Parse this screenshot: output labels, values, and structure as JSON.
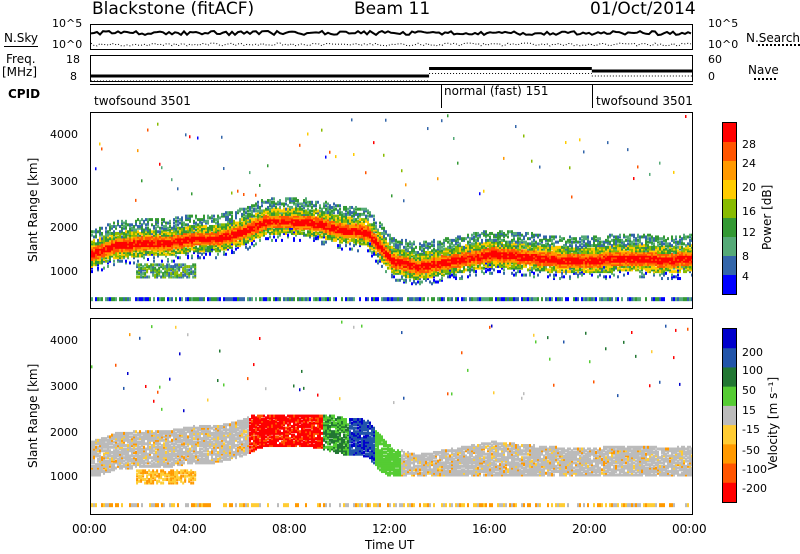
{
  "header": {
    "station": "Blackstone (fitACF)",
    "beam": "Beam 11",
    "date": "01/Oct/2014"
  },
  "noise_panel": {
    "left_label": "N.Sky",
    "right_label": "N.Search",
    "left_ticks": [
      "10^5",
      "10^0"
    ],
    "right_ticks": [
      "10^5",
      "10^0"
    ]
  },
  "freq_panel": {
    "left_label_1": "Freq.",
    "left_label_2": "[MHz]",
    "left_ticks": [
      "18",
      "8"
    ],
    "right_label": "Nave",
    "right_ticks": [
      "60",
      "0"
    ],
    "cpid_label": "CPID"
  },
  "cpid_segments": [
    {
      "label": "twofsound 3501",
      "start": "00:00",
      "end": "14:00"
    },
    {
      "label": "normal (fast) 151",
      "start": "14:00",
      "end": "20:00"
    },
    {
      "label": "twofsound 3501",
      "start": "20:00",
      "end": "24:00"
    }
  ],
  "power_panel": {
    "ylabel": "Slant Range [km]",
    "y_ticks": [
      "4000",
      "3000",
      "2000",
      "1000"
    ],
    "colorbar_label": "Power [dB]",
    "colorbar_ticks": [
      "28",
      "24",
      "20",
      "16",
      "12",
      "8",
      "4"
    ],
    "colorbar_colors": [
      "#ff0000",
      "#ff5500",
      "#ff9900",
      "#ffcc00",
      "#88bb00",
      "#339933",
      "#55aa77",
      "#3366aa",
      "#0000ff"
    ]
  },
  "velocity_panel": {
    "ylabel": "Slant Range [km]",
    "y_ticks": [
      "4000",
      "3000",
      "2000",
      "1000"
    ],
    "colorbar_label": "Velocity [m s⁻¹]",
    "colorbar_ticks": [
      "200",
      "100",
      "50",
      "15",
      "-15",
      "-50",
      "-100",
      "-200"
    ],
    "colorbar_colors": [
      "#0000cc",
      "#2255aa",
      "#227733",
      "#55cc33",
      "#bbbbbb",
      "#ffcc33",
      "#ff9900",
      "#ff5500",
      "#ff0000"
    ]
  },
  "x_axis": {
    "ticks": [
      "00:00",
      "04:00",
      "08:00",
      "12:00",
      "16:00",
      "20:00",
      "00:00"
    ],
    "label": "Time UT"
  },
  "chart_data": {
    "type": "heatmap",
    "title": "Blackstone (fitACF)",
    "xlabel": "Time UT",
    "ylabel": "Slant Range [km]",
    "xlim": [
      0,
      24
    ],
    "ylim": [
      0,
      4500
    ],
    "power_colorbar": {
      "label": "Power [dB]",
      "range": [
        0,
        30
      ]
    },
    "velocity_colorbar": {
      "label": "Velocity [m s⁻¹]",
      "range": [
        -250,
        250
      ]
    },
    "power_band_trace": {
      "x_hours": [
        0,
        1,
        2,
        3,
        4,
        5,
        6,
        7,
        8,
        9,
        10,
        11,
        12,
        13,
        14,
        15,
        16,
        17,
        18,
        19,
        20,
        21,
        22,
        23,
        24
      ],
      "range_km": [
        1250,
        1450,
        1500,
        1500,
        1600,
        1600,
        1750,
        2000,
        2000,
        1950,
        1800,
        1750,
        1100,
        950,
        1050,
        1150,
        1250,
        1200,
        1150,
        1100,
        1100,
        1150,
        1150,
        1100,
        1150
      ]
    },
    "freq_mhz": {
      "segments": [
        {
          "start": 0,
          "end": 13.5,
          "value": 10
        },
        {
          "start": 13.5,
          "end": 20,
          "value": 13
        },
        {
          "start": 20,
          "end": 24,
          "value": 12
        }
      ]
    }
  }
}
